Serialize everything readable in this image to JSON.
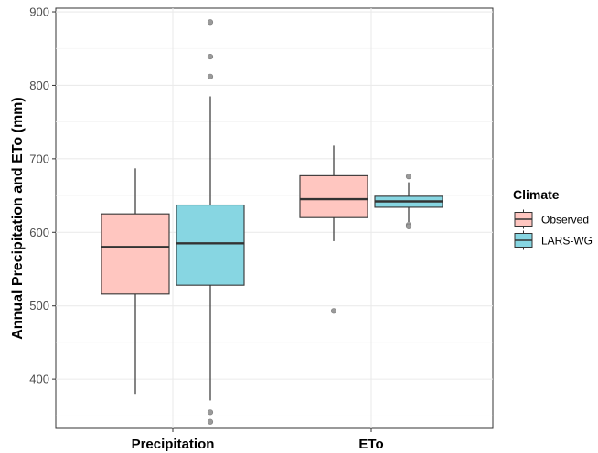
{
  "chart_data": {
    "type": "boxplot",
    "title": "",
    "xlabel": "",
    "ylabel": "Annual Precipitation and ETo (mm)",
    "ylim": [
      333,
      905
    ],
    "yticks": [
      400,
      500,
      600,
      700,
      800,
      900
    ],
    "categories": [
      "Precipitation",
      "ETo"
    ],
    "grid": true,
    "legend": {
      "title": "Climate",
      "position": "right"
    },
    "series": [
      {
        "name": "Observed",
        "color": "#F8766D",
        "fill": "#FFC6C0",
        "boxes": [
          {
            "category": "Precipitation",
            "min": 380,
            "q1": 516,
            "median": 580,
            "q3": 625,
            "max": 687,
            "outliers": []
          },
          {
            "category": "ETo",
            "min": 588,
            "q1": 620,
            "median": 645,
            "q3": 677,
            "max": 718,
            "outliers": [
              493
            ]
          }
        ]
      },
      {
        "name": "LARS-WG",
        "color": "#00BFC4",
        "fill": "#87D6E2",
        "boxes": [
          {
            "category": "Precipitation",
            "min": 371,
            "q1": 528,
            "median": 585,
            "q3": 637,
            "max": 785,
            "outliers": [
              886,
              839,
              812,
              355,
              342
            ]
          },
          {
            "category": "ETo",
            "min": 614,
            "q1": 634,
            "median": 642,
            "q3": 649,
            "max": 668,
            "outliers": [
              676,
              610,
              608
            ]
          }
        ]
      }
    ]
  }
}
